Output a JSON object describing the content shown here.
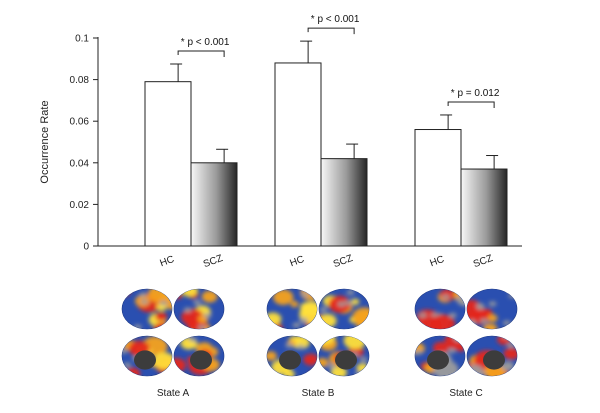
{
  "chart_data": {
    "type": "bar",
    "ylabel": "Occurrence Rate",
    "ylim": [
      0,
      0.1
    ],
    "yticks": [
      "0",
      "0.02",
      "0.04",
      "0.06",
      "0.08",
      "0.1"
    ],
    "grid": false,
    "groups": [
      {
        "name": "State A",
        "annotation": "* p < 0.001",
        "bars": [
          {
            "category": "HC",
            "value": 0.079,
            "error": 0.0085,
            "fill": "white"
          },
          {
            "category": "SCZ",
            "value": 0.04,
            "error": 0.0065,
            "fill": "gradient"
          }
        ]
      },
      {
        "name": "State B",
        "annotation": "* p < 0.001",
        "bars": [
          {
            "category": "HC",
            "value": 0.088,
            "error": 0.0105,
            "fill": "white"
          },
          {
            "category": "SCZ",
            "value": 0.042,
            "error": 0.007,
            "fill": "gradient"
          }
        ]
      },
      {
        "name": "State C",
        "annotation": "* p = 0.012",
        "bars": [
          {
            "category": "HC",
            "value": 0.056,
            "error": 0.007,
            "fill": "white"
          },
          {
            "category": "SCZ",
            "value": 0.037,
            "error": 0.0065,
            "fill": "gradient"
          }
        ]
      }
    ]
  },
  "brain_maps": {
    "description_labels": [
      "State A",
      "State B",
      "State C"
    ],
    "colors": {
      "base": "#2a4fb0",
      "hot": "#e3261c",
      "warm": "#f5a21b",
      "yellow": "#ffe03a",
      "gray": "#9c9c9c",
      "medial": "#3c3c3c"
    }
  }
}
